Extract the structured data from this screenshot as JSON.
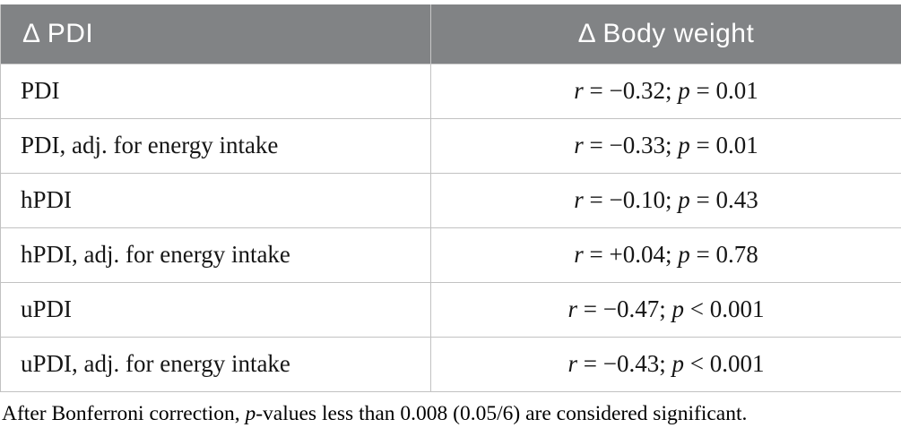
{
  "table": {
    "header": {
      "col1": "Δ PDI",
      "col2": "Δ Body weight"
    },
    "rows": [
      {
        "label": "PDI",
        "r_sym": "r",
        "r_text": " = −0.32; ",
        "p_sym": "p",
        "p_text": " = 0.01"
      },
      {
        "label": "PDI, adj. for energy intake",
        "r_sym": "r",
        "r_text": " = −0.33; ",
        "p_sym": "p",
        "p_text": " = 0.01"
      },
      {
        "label": "hPDI",
        "r_sym": "r",
        "r_text": " = −0.10; ",
        "p_sym": "p",
        "p_text": " = 0.43"
      },
      {
        "label": "hPDI, adj. for energy intake",
        "r_sym": "r",
        "r_text": " = +0.04; ",
        "p_sym": "p",
        "p_text": " = 0.78"
      },
      {
        "label": "uPDI",
        "r_sym": "r",
        "r_text": " = −0.47; ",
        "p_sym": "p",
        "p_text": " < 0.001"
      },
      {
        "label": "uPDI, adj. for energy intake",
        "r_sym": "r",
        "r_text": " = −0.43; ",
        "p_sym": "p",
        "p_text": " < 0.001"
      }
    ]
  },
  "footnote": {
    "before_p": "After Bonferroni correction, ",
    "p_sym": "p",
    "after_p": "-values less than 0.008 (0.05/6) are considered significant."
  },
  "colors": {
    "header_bg": "#818385",
    "border": "#c2c2c2",
    "text": "#161616",
    "header_text": "#ffffff"
  }
}
